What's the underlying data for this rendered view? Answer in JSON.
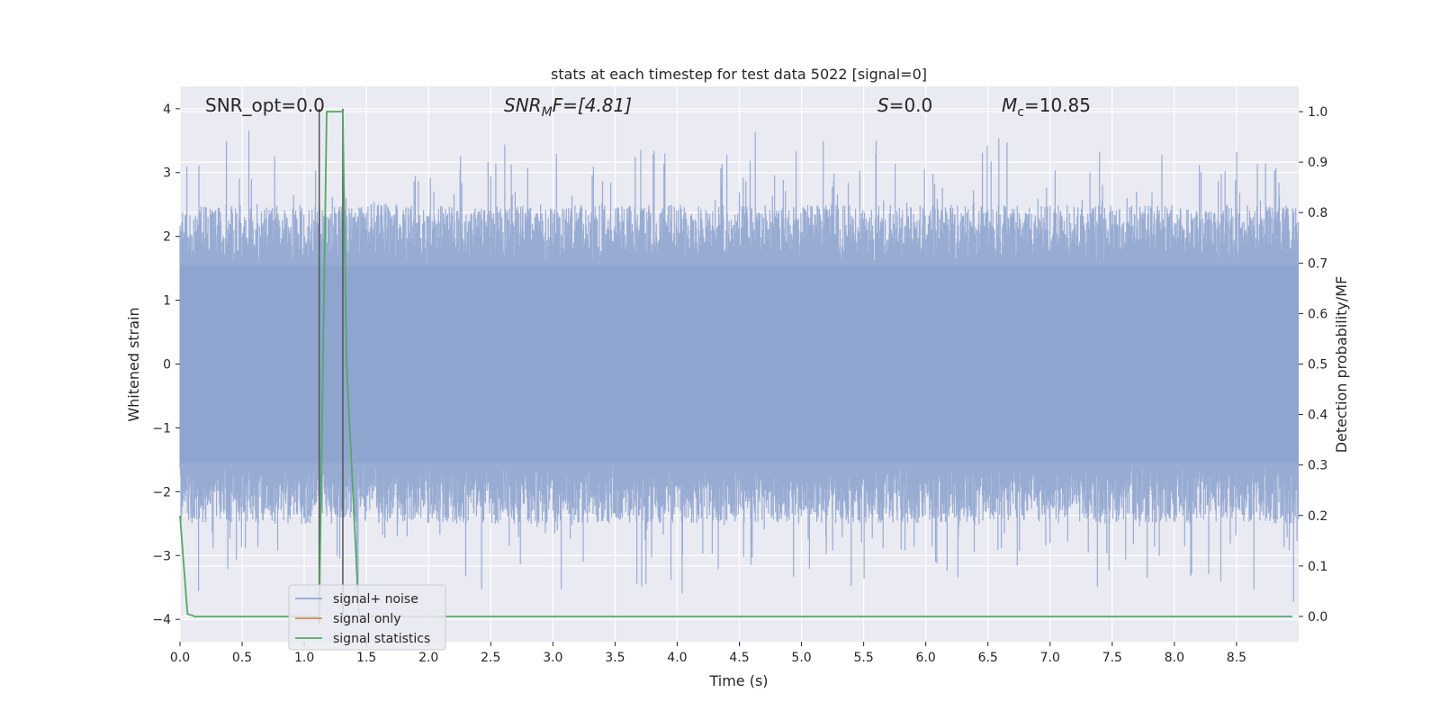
{
  "chart_data": {
    "type": "line",
    "title": "stats at each timestep for test data 5022 [signal=0]",
    "xlabel": "Time (s)",
    "ylabel": "Whitened strain",
    "y2label": "Detection probability/MF",
    "xlim": [
      0.0,
      9.0
    ],
    "ylim": [
      -4.35,
      4.35
    ],
    "y2lim": [
      -0.05,
      1.05
    ],
    "xticks": [
      0.0,
      0.5,
      1.0,
      1.5,
      2.0,
      2.5,
      3.0,
      3.5,
      4.0,
      4.5,
      5.0,
      5.5,
      6.0,
      6.5,
      7.0,
      7.5,
      8.0,
      8.5
    ],
    "xtick_labels": [
      "0.0",
      "0.5",
      "1.0",
      "1.5",
      "2.0",
      "2.5",
      "3.0",
      "3.5",
      "4.0",
      "4.5",
      "5.0",
      "5.5",
      "6.0",
      "6.5",
      "7.0",
      "7.5",
      "8.0",
      "8.5"
    ],
    "yticks": [
      -4,
      -3,
      -2,
      -1,
      0,
      1,
      2,
      3,
      4
    ],
    "ytick_labels": [
      "−4",
      "−3",
      "−2",
      "−1",
      "0",
      "1",
      "2",
      "3",
      "4"
    ],
    "y2ticks": [
      0.0,
      0.1,
      0.2,
      0.3,
      0.4,
      0.5,
      0.6,
      0.7,
      0.8,
      0.9,
      1.0
    ],
    "y2tick_labels": [
      "0.0",
      "0.1",
      "0.2",
      "0.3",
      "0.4",
      "0.5",
      "0.6",
      "0.7",
      "0.8",
      "0.9",
      "1.0"
    ],
    "grid": true,
    "legend_position": "lower-left",
    "annotations": {
      "snr_opt": "SNR_opt=0.0",
      "snr_mf_main": "SNR",
      "snr_mf_sub": "M",
      "snr_mf_tail": "F=[4.81]",
      "s_main": "S",
      "s_tail": "=0.0",
      "mc_main": "M",
      "mc_sub": "c",
      "mc_tail": "=10.85"
    },
    "vertical_lines_x": [
      1.12,
      1.31
    ],
    "series": [
      {
        "name": "signal+ noise",
        "color": "#8fa5cf",
        "noise_envelope": {
          "x_start": 0.0,
          "x_end": 9.0,
          "typical_amplitude": 2.0,
          "max_positive": 4.0,
          "min_negative": -4.0
        }
      },
      {
        "name": "signal only",
        "color": "#dd8452",
        "x": [],
        "y": []
      },
      {
        "name": "signal statistics",
        "color": "#55a868",
        "axis": "right",
        "x": [
          0.0,
          0.06,
          0.12,
          1.12,
          1.18,
          1.31,
          1.34,
          1.44,
          8.95
        ],
        "y": [
          0.2,
          0.005,
          0.0,
          0.0,
          1.0,
          1.0,
          0.5,
          0.0,
          0.0
        ]
      }
    ]
  },
  "legend": {
    "items": [
      {
        "label": "signal+ noise",
        "color": "#8fa5cf"
      },
      {
        "label": "signal only",
        "color": "#dd8452"
      },
      {
        "label": "signal statistics",
        "color": "#55a868"
      }
    ]
  }
}
